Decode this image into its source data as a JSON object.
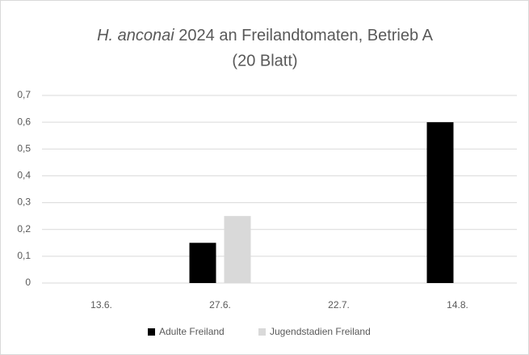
{
  "chart_data": {
    "type": "bar",
    "title_italic": "H. anconai",
    "title": "2024 an Freilandtomaten, Betrieb A",
    "subtitle": "(20 Blatt)",
    "categories": [
      "13.6.",
      "27.6.",
      "22.7.",
      "14.8."
    ],
    "series": [
      {
        "name": "Adulte Freiland",
        "color": "#000000",
        "values": [
          0,
          0.15,
          0,
          0.6
        ]
      },
      {
        "name": "Jugendstadien Freiland",
        "color": "#d9d9d9",
        "values": [
          0,
          0.25,
          0,
          0
        ]
      }
    ],
    "ylim": [
      0,
      0.7
    ],
    "yticks": [
      0,
      {
        "value": 0.1,
        "label": "0,1"
      },
      {
        "value": 0.2,
        "label": "0,2"
      },
      {
        "value": 0.3,
        "label": "0,3"
      },
      {
        "value": 0.4,
        "label": "0,4"
      },
      {
        "value": 0.5,
        "label": "0,5"
      },
      {
        "value": 0.6,
        "label": "0,6"
      },
      {
        "value": 0.7,
        "label": "0,7"
      }
    ],
    "grid": true,
    "legend": "bottom"
  }
}
